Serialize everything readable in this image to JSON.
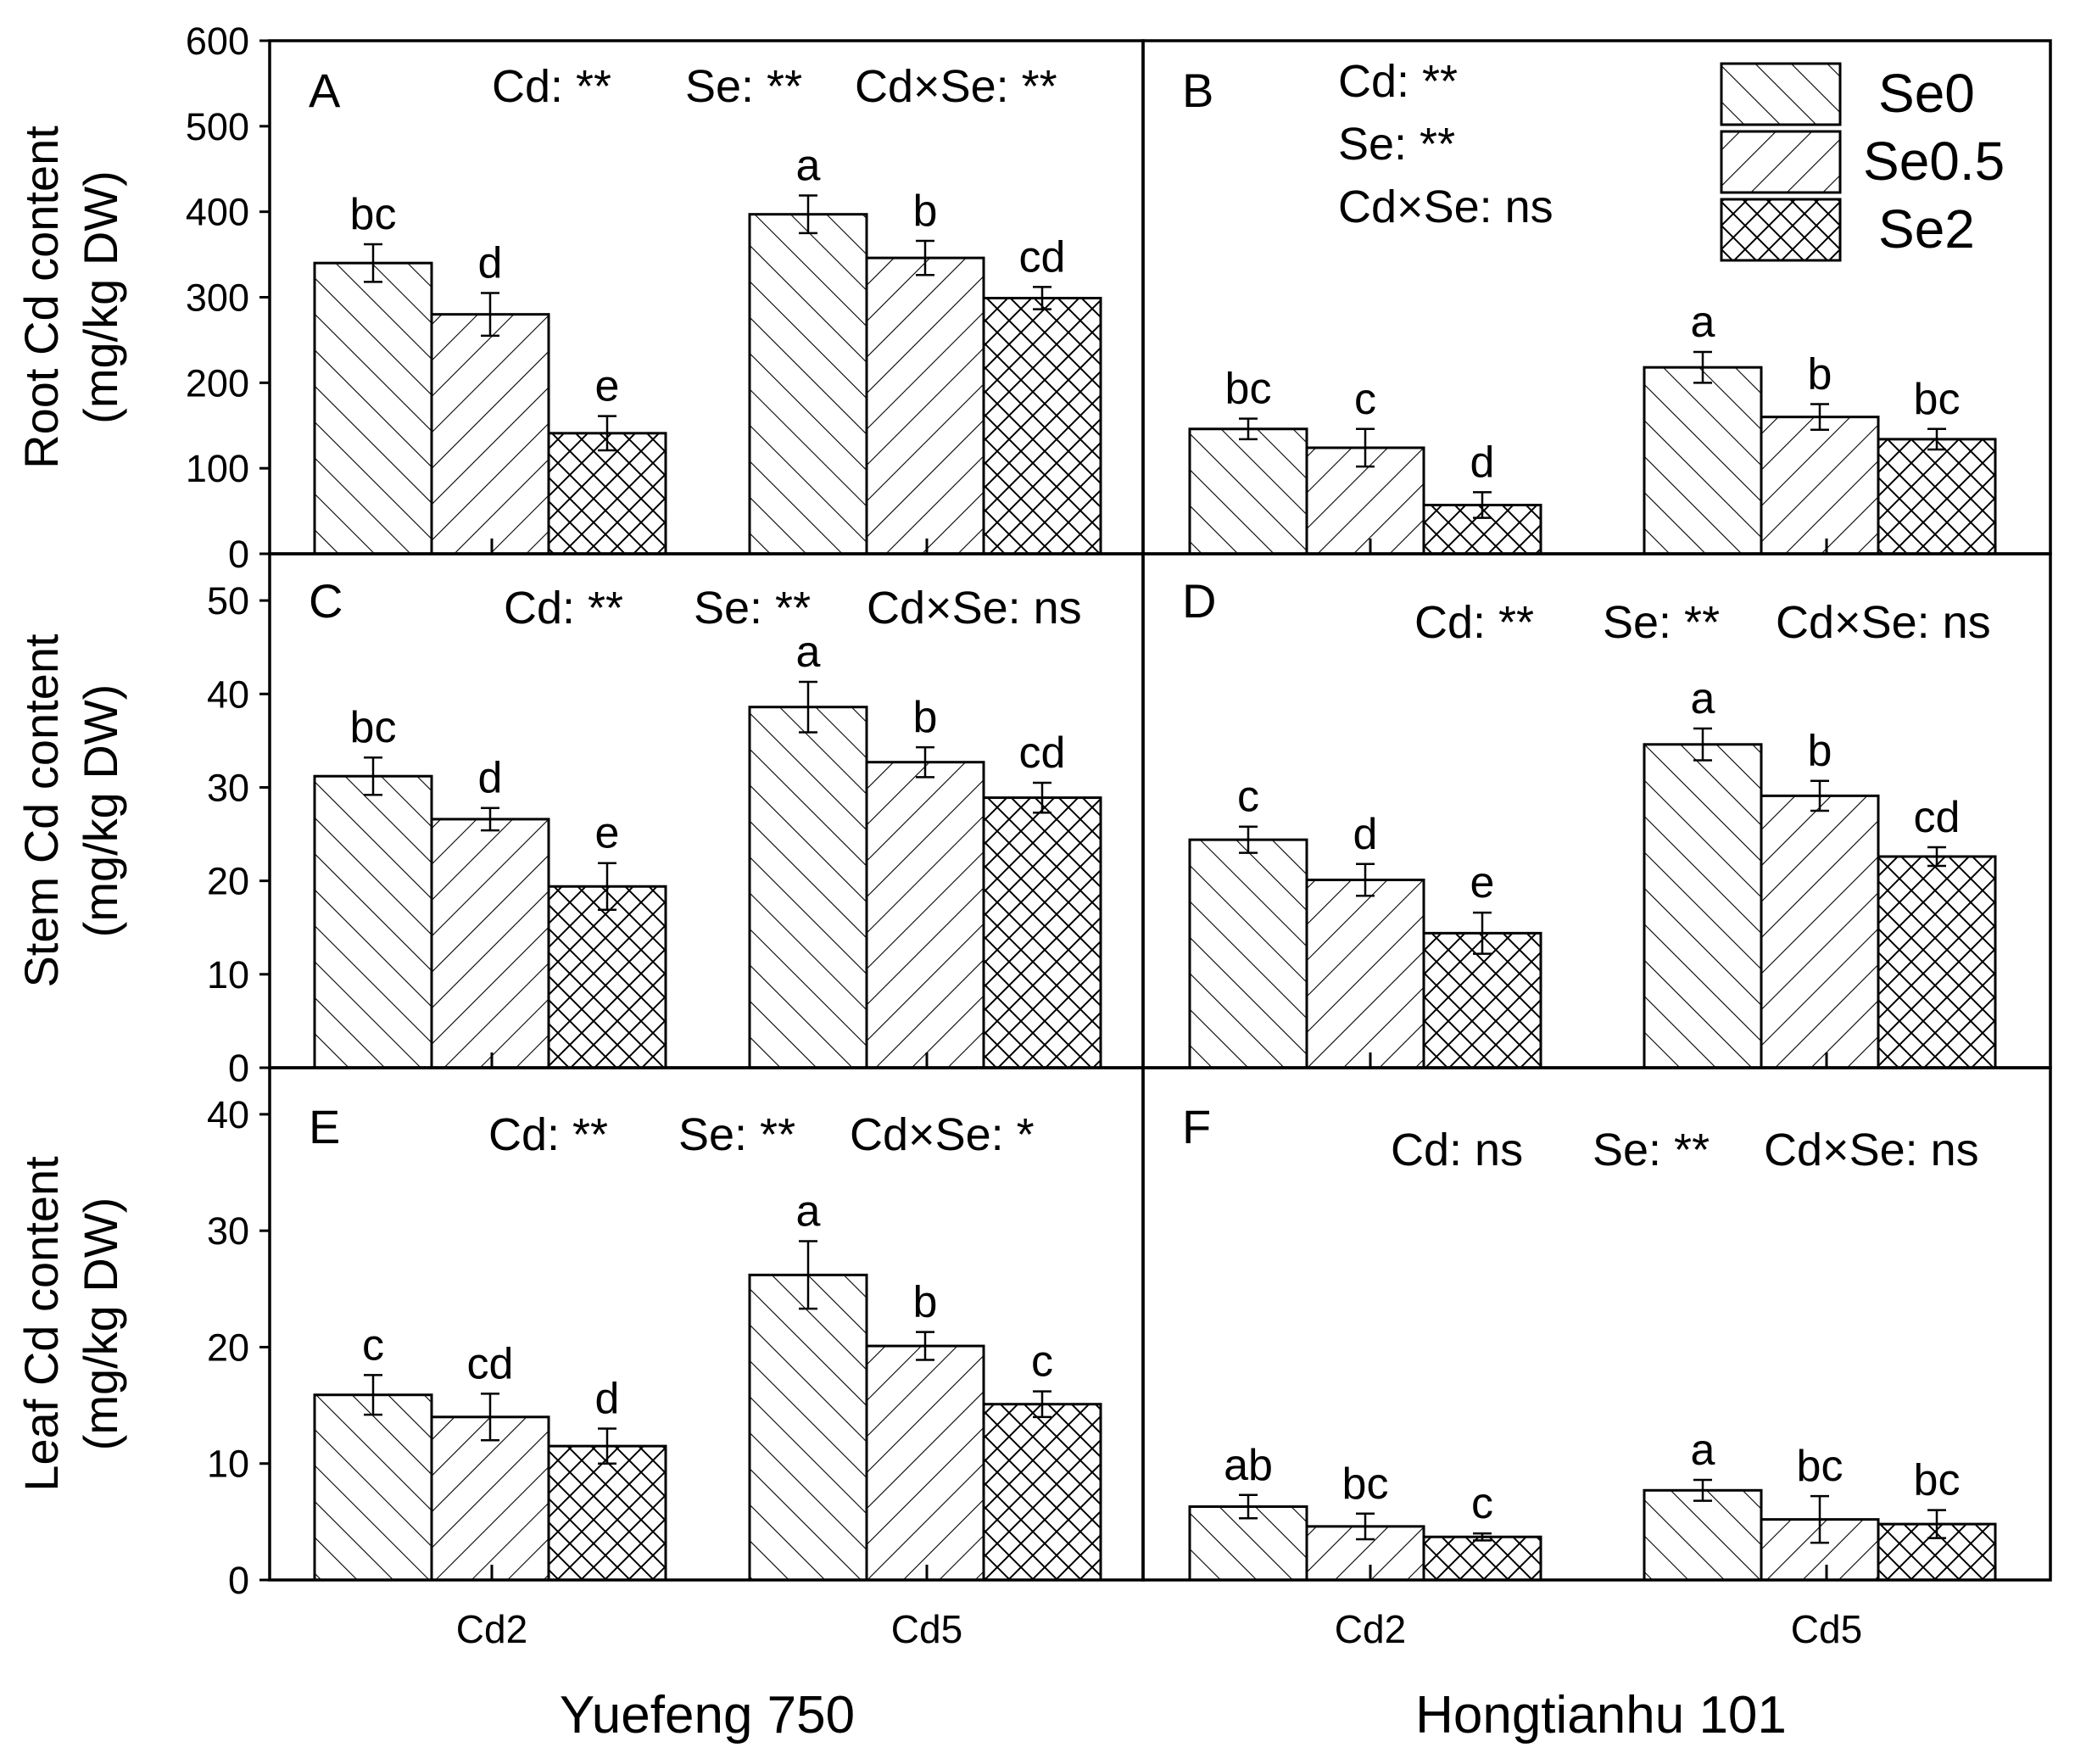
{
  "chart_data": {
    "type": "bar",
    "groups": [
      "Cd2",
      "Cd5"
    ],
    "series_names": [
      "Se0",
      "Se0.5",
      "Se2"
    ],
    "cultivars": [
      "Yuefeng 750",
      "Hongtianhu 101"
    ],
    "legend": [
      "Se0",
      "Se0.5",
      "Se2"
    ],
    "rows": [
      {
        "ylabel": [
          "Root Cd content",
          "(mg/kg DW)"
        ],
        "ylim": [
          0,
          600
        ],
        "ticks": [
          0,
          100,
          200,
          300,
          400,
          500,
          600
        ]
      },
      {
        "ylabel": [
          "Stem Cd content",
          "(mg/kg DW)"
        ],
        "ylim": [
          0,
          55
        ],
        "ticks": [
          0,
          10,
          20,
          30,
          40,
          50
        ]
      },
      {
        "ylabel": [
          "Leaf Cd content",
          "(mg/kg DW)"
        ],
        "ylim": [
          0,
          44
        ],
        "ticks": [
          0,
          10,
          20,
          30,
          40
        ]
      }
    ],
    "panels": [
      {
        "letter": "A",
        "row": 0,
        "col": 0,
        "stats": [
          "Cd: **",
          "Se: **",
          "Cd×Se: **"
        ],
        "values": [
          [
            340,
            280,
            141
          ],
          [
            397,
            346,
            299
          ]
        ],
        "errors": [
          [
            22,
            25,
            20
          ],
          [
            22,
            20,
            13
          ]
        ],
        "labels": [
          [
            "bc",
            "d",
            "e"
          ],
          [
            "a",
            "b",
            "cd"
          ]
        ]
      },
      {
        "letter": "B",
        "row": 0,
        "col": 1,
        "stats": [
          "Cd: **",
          "Se: **",
          "Cd×Se: ns"
        ],
        "values": [
          [
            146,
            124,
            57
          ],
          [
            218,
            160,
            134
          ]
        ],
        "errors": [
          [
            12,
            22,
            15
          ],
          [
            18,
            15,
            12
          ]
        ],
        "labels": [
          [
            "bc",
            "c",
            "d"
          ],
          [
            "a",
            "b",
            "bc"
          ]
        ]
      },
      {
        "letter": "C",
        "row": 1,
        "col": 0,
        "stats": [
          "Cd: **",
          "Se: **",
          "Cd×Se: ns"
        ],
        "values": [
          [
            31.2,
            26.6,
            19.4
          ],
          [
            38.6,
            32.7,
            28.9
          ]
        ],
        "errors": [
          [
            2.0,
            1.2,
            2.5
          ],
          [
            2.7,
            1.6,
            1.6
          ]
        ],
        "labels": [
          [
            "bc",
            "d",
            "e"
          ],
          [
            "a",
            "b",
            "cd"
          ]
        ]
      },
      {
        "letter": "D",
        "row": 1,
        "col": 1,
        "stats": [
          "Cd: **",
          "Se: **",
          "Cd×Se: ns"
        ],
        "values": [
          [
            24.4,
            20.1,
            14.4
          ],
          [
            34.6,
            29.1,
            22.6
          ]
        ],
        "errors": [
          [
            1.4,
            1.7,
            2.2
          ],
          [
            1.7,
            1.6,
            1.0
          ]
        ],
        "labels": [
          [
            "c",
            "d",
            "e"
          ],
          [
            "a",
            "b",
            "cd"
          ]
        ]
      },
      {
        "letter": "E",
        "row": 2,
        "col": 0,
        "stats": [
          "Cd: **",
          "Se: **",
          "Cd×Se: *"
        ],
        "values": [
          [
            15.9,
            14.0,
            11.5
          ],
          [
            26.2,
            20.1,
            15.1
          ]
        ],
        "errors": [
          [
            1.7,
            2.0,
            1.5
          ],
          [
            2.9,
            1.2,
            1.1
          ]
        ],
        "labels": [
          [
            "c",
            "cd",
            "d"
          ],
          [
            "a",
            "b",
            "c"
          ]
        ]
      },
      {
        "letter": "F",
        "row": 2,
        "col": 1,
        "stats": [
          "Cd: ns",
          "Se: **",
          "Cd×Se: ns"
        ],
        "values": [
          [
            6.3,
            4.6,
            3.7
          ],
          [
            7.7,
            5.2,
            4.8
          ]
        ],
        "errors": [
          [
            1.0,
            1.1,
            0.3
          ],
          [
            0.9,
            2.0,
            1.2
          ]
        ],
        "labels": [
          [
            "ab",
            "bc",
            "c"
          ],
          [
            "a",
            "bc",
            "bc"
          ]
        ]
      }
    ]
  }
}
